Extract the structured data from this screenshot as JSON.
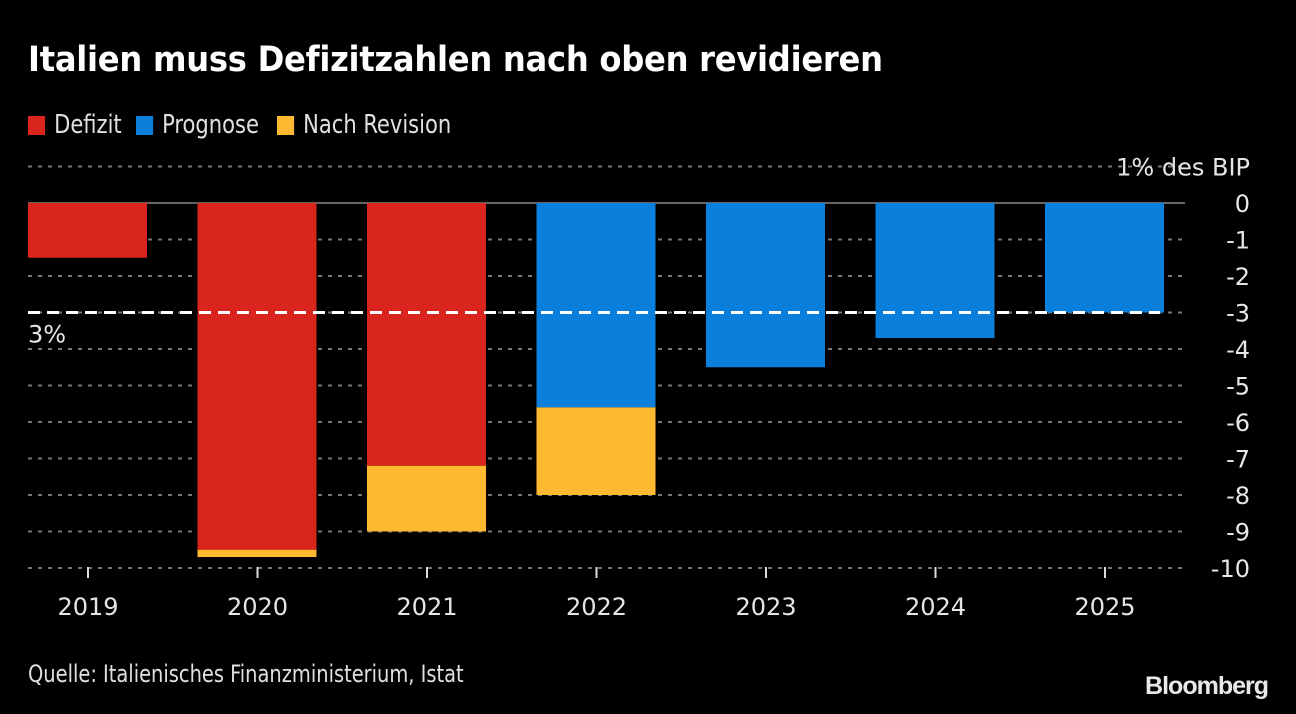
{
  "header": {
    "title": "Italien muss Defizitzahlen nach oben revidieren"
  },
  "legend": [
    {
      "label": "Defizit",
      "color": "#D9251D"
    },
    {
      "label": "Prognose",
      "color": "#0A80DC"
    },
    {
      "label": "Nach Revision",
      "color": "#FDB930"
    }
  ],
  "footer": {
    "source": "Quelle: Italienisches Finanzministerium, Istat",
    "brand": "Bloomberg"
  },
  "chart_data": {
    "type": "bar",
    "stacked": true,
    "title": "Italien muss Defizitzahlen nach oben revidieren",
    "xlabel": "",
    "ylabel": "1% des BIP",
    "ylim": [
      -10,
      1
    ],
    "yticks": [
      0,
      -1,
      -2,
      -3,
      -4,
      -5,
      -6,
      -7,
      -8,
      -9,
      -10
    ],
    "ytick_labels": [
      "0",
      "-1",
      "-2",
      "-3",
      "-4",
      "-5",
      "-6",
      "-7",
      "-8",
      "-9",
      "-10"
    ],
    "grid": true,
    "legend_position": "top-left",
    "categories": [
      "2019",
      "2020",
      "2021",
      "2022",
      "2023",
      "2024",
      "2025"
    ],
    "series": [
      {
        "name": "Defizit",
        "color": "#D9251D",
        "values": [
          -1.5,
          -9.5,
          -7.2,
          0,
          0,
          0,
          0
        ]
      },
      {
        "name": "Prognose",
        "color": "#0A80DC",
        "values": [
          0,
          0,
          0,
          -5.6,
          -4.5,
          -3.7,
          -3.0
        ]
      },
      {
        "name": "Nach Revision",
        "color": "#FDB930",
        "values": [
          0,
          -0.2,
          -1.8,
          -2.4,
          0,
          0,
          0
        ]
      }
    ],
    "totals": [
      -1.5,
      -9.7,
      -9.0,
      -8.0,
      -4.5,
      -3.7,
      -3.0
    ],
    "reference_line": {
      "value": -3,
      "label": "3%",
      "style": "dashed",
      "color": "#FFFFFF"
    }
  }
}
